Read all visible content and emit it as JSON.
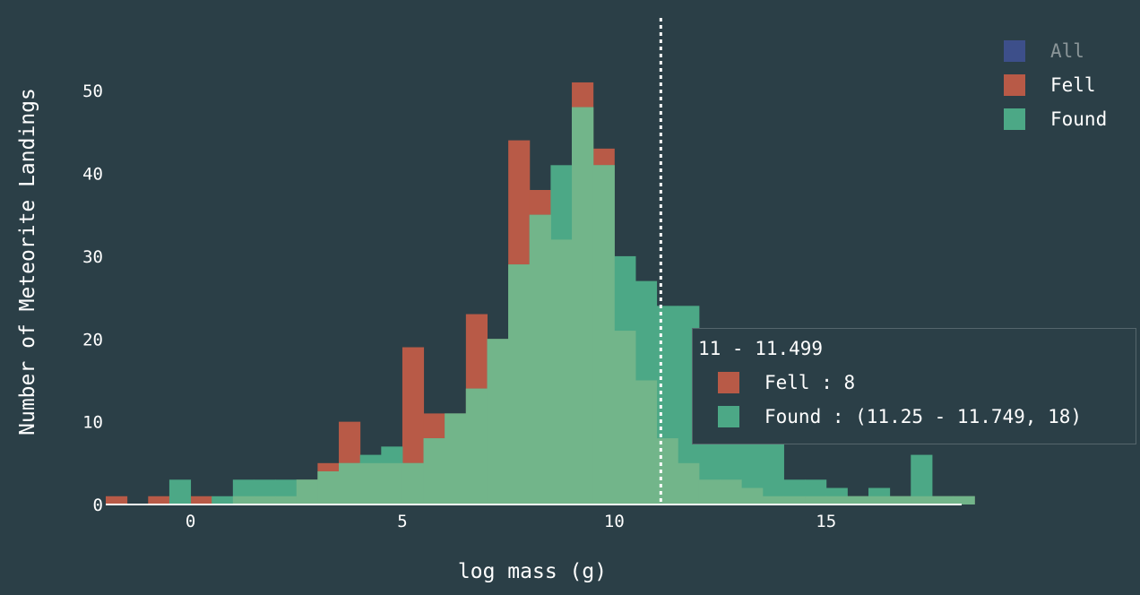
{
  "chart_data": {
    "type": "histogram",
    "xlabel": "log mass (g)",
    "ylabel": "Number of Meteorite Landings",
    "xlim": [
      -2,
      18.2
    ],
    "ylim": [
      0,
      55
    ],
    "xticks": [
      0,
      5,
      10,
      15
    ],
    "yticks": [
      0,
      10,
      20,
      30,
      40,
      50
    ],
    "bin_width": 0.5,
    "marker_line_x": 11.1,
    "series": [
      {
        "name": "Fell",
        "color": "#b85a47",
        "x_start": -2,
        "counts": [
          1,
          0,
          1,
          0,
          1,
          0,
          1,
          1,
          1,
          3,
          5,
          10,
          5,
          5,
          19,
          11,
          11,
          23,
          20,
          44,
          38,
          32,
          51,
          43,
          21,
          15,
          8,
          5,
          3,
          3,
          2,
          1,
          1,
          1,
          1,
          1,
          1,
          1,
          1,
          1,
          1
        ]
      },
      {
        "name": "Found",
        "color": "#4ca886",
        "x_start": -2,
        "counts": [
          0,
          0,
          0,
          3,
          0,
          1,
          3,
          3,
          3,
          3,
          4,
          5,
          6,
          7,
          5,
          8,
          11,
          14,
          20,
          29,
          35,
          41,
          48,
          41,
          30,
          27,
          24,
          24,
          13,
          11,
          9,
          9,
          3,
          3,
          2,
          1,
          2,
          1,
          6,
          1,
          1
        ]
      },
      {
        "name": "All",
        "color": "#3d4f8a",
        "hidden": true
      }
    ],
    "overlap_color": "#72b58a"
  },
  "legend": [
    {
      "name": "All",
      "color": "#3d4f8a",
      "active": false
    },
    {
      "name": "Fell",
      "color": "#b85a47",
      "active": true
    },
    {
      "name": "Found",
      "color": "#4ca886",
      "active": true
    }
  ],
  "tooltip": {
    "title": "11 - 11.499",
    "rows": [
      {
        "label": "Fell : 8",
        "color": "#b85a47"
      },
      {
        "label": "Found : (11.25 - 11.749, 18)",
        "color": "#4ca886"
      }
    ]
  }
}
